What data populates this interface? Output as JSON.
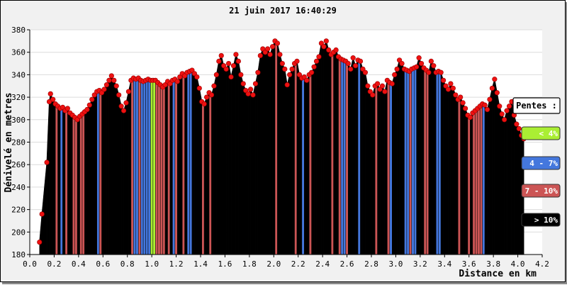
{
  "chart_data": {
    "type": "bar",
    "title": "21 juin 2017 16:40:29",
    "xlabel": "Distance en km",
    "ylabel": "Dénivelé en metres",
    "xlim": [
      0,
      4.2
    ],
    "ylim": [
      180,
      380
    ],
    "x_ticks": [
      "0.0",
      "0.2",
      "0.4",
      "0.6",
      "0.8",
      "1.0",
      "1.2",
      "1.4",
      "1.6",
      "1.8",
      "2.0",
      "2.2",
      "2.4",
      "2.6",
      "2.8",
      "3.0",
      "3.2",
      "3.4",
      "3.6",
      "3.8",
      "4.0",
      "4.2"
    ],
    "y_ticks": [
      "180",
      "200",
      "220",
      "240",
      "260",
      "280",
      "300",
      "320",
      "340",
      "360",
      "380"
    ],
    "grid": true,
    "legend": {
      "title": "Pentes :",
      "placement": "right",
      "entries": [
        {
          "label": "< 4%",
          "color": "#aaee33",
          "text_color": "#ffffff"
        },
        {
          "label": "4 - 7%",
          "color": "#4477dd",
          "text_color": "#ffffff"
        },
        {
          "label": "7 - 10%",
          "color": "#cc5555",
          "text_color": "#ffffff"
        },
        {
          "label": "> 10%",
          "color": "#000000",
          "text_color": "#ffffff"
        }
      ]
    },
    "points": [
      [
        0.08,
        191
      ],
      [
        0.1,
        216
      ],
      [
        0.14,
        262
      ],
      [
        0.16,
        316
      ],
      [
        0.17,
        323
      ],
      [
        0.19,
        318
      ],
      [
        0.21,
        314
      ],
      [
        0.23,
        312
      ],
      [
        0.25,
        310
      ],
      [
        0.27,
        311
      ],
      [
        0.29,
        308
      ],
      [
        0.31,
        310
      ],
      [
        0.33,
        306
      ],
      [
        0.35,
        304
      ],
      [
        0.37,
        302
      ],
      [
        0.39,
        300
      ],
      [
        0.41,
        303
      ],
      [
        0.43,
        305
      ],
      [
        0.45,
        307
      ],
      [
        0.47,
        309
      ],
      [
        0.49,
        313
      ],
      [
        0.51,
        318
      ],
      [
        0.53,
        322
      ],
      [
        0.55,
        325
      ],
      [
        0.57,
        326
      ],
      [
        0.59,
        324
      ],
      [
        0.61,
        327
      ],
      [
        0.63,
        331
      ],
      [
        0.65,
        335
      ],
      [
        0.67,
        339
      ],
      [
        0.69,
        335
      ],
      [
        0.71,
        330
      ],
      [
        0.73,
        322
      ],
      [
        0.75,
        312
      ],
      [
        0.77,
        308
      ],
      [
        0.79,
        315
      ],
      [
        0.81,
        325
      ],
      [
        0.83,
        335
      ],
      [
        0.85,
        337
      ],
      [
        0.87,
        336
      ],
      [
        0.89,
        337
      ],
      [
        0.91,
        335
      ],
      [
        0.93,
        334
      ],
      [
        0.95,
        335
      ],
      [
        0.97,
        336
      ],
      [
        0.99,
        335
      ],
      [
        1.01,
        335
      ],
      [
        1.03,
        335
      ],
      [
        1.05,
        333
      ],
      [
        1.07,
        331
      ],
      [
        1.09,
        329
      ],
      [
        1.11,
        331
      ],
      [
        1.13,
        334
      ],
      [
        1.15,
        332
      ],
      [
        1.17,
        335
      ],
      [
        1.19,
        336
      ],
      [
        1.21,
        334
      ],
      [
        1.23,
        338
      ],
      [
        1.25,
        341
      ],
      [
        1.27,
        339
      ],
      [
        1.29,
        342
      ],
      [
        1.31,
        343
      ],
      [
        1.33,
        344
      ],
      [
        1.35,
        341
      ],
      [
        1.37,
        338
      ],
      [
        1.39,
        328
      ],
      [
        1.41,
        316
      ],
      [
        1.43,
        314
      ],
      [
        1.45,
        320
      ],
      [
        1.47,
        324
      ],
      [
        1.49,
        322
      ],
      [
        1.51,
        330
      ],
      [
        1.53,
        340
      ],
      [
        1.55,
        352
      ],
      [
        1.57,
        357
      ],
      [
        1.59,
        348
      ],
      [
        1.61,
        345
      ],
      [
        1.63,
        350
      ],
      [
        1.65,
        338
      ],
      [
        1.67,
        348
      ],
      [
        1.69,
        358
      ],
      [
        1.71,
        352
      ],
      [
        1.73,
        340
      ],
      [
        1.75,
        332
      ],
      [
        1.77,
        326
      ],
      [
        1.79,
        323
      ],
      [
        1.81,
        327
      ],
      [
        1.83,
        322
      ],
      [
        1.85,
        332
      ],
      [
        1.87,
        342
      ],
      [
        1.89,
        357
      ],
      [
        1.91,
        363
      ],
      [
        1.93,
        360
      ],
      [
        1.95,
        363
      ],
      [
        1.97,
        358
      ],
      [
        1.99,
        365
      ],
      [
        2.01,
        370
      ],
      [
        2.03,
        368
      ],
      [
        2.05,
        358
      ],
      [
        2.07,
        350
      ],
      [
        2.09,
        345
      ],
      [
        2.11,
        331
      ],
      [
        2.13,
        340
      ],
      [
        2.15,
        345
      ],
      [
        2.17,
        350
      ],
      [
        2.19,
        352
      ],
      [
        2.21,
        340
      ],
      [
        2.23,
        337
      ],
      [
        2.25,
        338
      ],
      [
        2.27,
        335
      ],
      [
        2.29,
        340
      ],
      [
        2.31,
        342
      ],
      [
        2.33,
        347
      ],
      [
        2.35,
        352
      ],
      [
        2.37,
        356
      ],
      [
        2.39,
        368
      ],
      [
        2.41,
        365
      ],
      [
        2.43,
        370
      ],
      [
        2.45,
        362
      ],
      [
        2.47,
        358
      ],
      [
        2.49,
        360
      ],
      [
        2.51,
        362
      ],
      [
        2.53,
        356
      ],
      [
        2.55,
        354
      ],
      [
        2.57,
        353
      ],
      [
        2.59,
        352
      ],
      [
        2.61,
        350
      ],
      [
        2.63,
        345
      ],
      [
        2.65,
        355
      ],
      [
        2.67,
        348
      ],
      [
        2.69,
        353
      ],
      [
        2.71,
        352
      ],
      [
        2.73,
        345
      ],
      [
        2.75,
        342
      ],
      [
        2.77,
        330
      ],
      [
        2.79,
        325
      ],
      [
        2.81,
        322
      ],
      [
        2.83,
        330
      ],
      [
        2.85,
        332
      ],
      [
        2.87,
        327
      ],
      [
        2.89,
        330
      ],
      [
        2.91,
        325
      ],
      [
        2.93,
        335
      ],
      [
        2.95,
        333
      ],
      [
        2.97,
        332
      ],
      [
        2.99,
        340
      ],
      [
        3.01,
        345
      ],
      [
        3.03,
        353
      ],
      [
        3.05,
        350
      ],
      [
        3.07,
        345
      ],
      [
        3.09,
        344
      ],
      [
        3.11,
        343
      ],
      [
        3.13,
        345
      ],
      [
        3.15,
        346
      ],
      [
        3.17,
        347
      ],
      [
        3.19,
        355
      ],
      [
        3.21,
        350
      ],
      [
        3.23,
        346
      ],
      [
        3.25,
        344
      ],
      [
        3.27,
        342
      ],
      [
        3.29,
        352
      ],
      [
        3.31,
        348
      ],
      [
        3.33,
        342
      ],
      [
        3.35,
        343
      ],
      [
        3.37,
        342
      ],
      [
        3.39,
        335
      ],
      [
        3.41,
        330
      ],
      [
        3.43,
        327
      ],
      [
        3.45,
        332
      ],
      [
        3.47,
        328
      ],
      [
        3.49,
        322
      ],
      [
        3.51,
        318
      ],
      [
        3.53,
        320
      ],
      [
        3.55,
        315
      ],
      [
        3.57,
        310
      ],
      [
        3.59,
        304
      ],
      [
        3.61,
        302
      ],
      [
        3.63,
        306
      ],
      [
        3.65,
        308
      ],
      [
        3.67,
        310
      ],
      [
        3.69,
        312
      ],
      [
        3.71,
        314
      ],
      [
        3.73,
        313
      ],
      [
        3.75,
        309
      ],
      [
        3.77,
        318
      ],
      [
        3.79,
        328
      ],
      [
        3.81,
        336
      ],
      [
        3.83,
        324
      ],
      [
        3.85,
        312
      ],
      [
        3.87,
        305
      ],
      [
        3.89,
        300
      ],
      [
        3.91,
        308
      ],
      [
        3.93,
        312
      ],
      [
        3.95,
        316
      ],
      [
        3.97,
        304
      ],
      [
        3.99,
        296
      ],
      [
        4.01,
        292
      ],
      [
        4.03,
        286
      ],
      [
        4.05,
        283
      ]
    ]
  }
}
